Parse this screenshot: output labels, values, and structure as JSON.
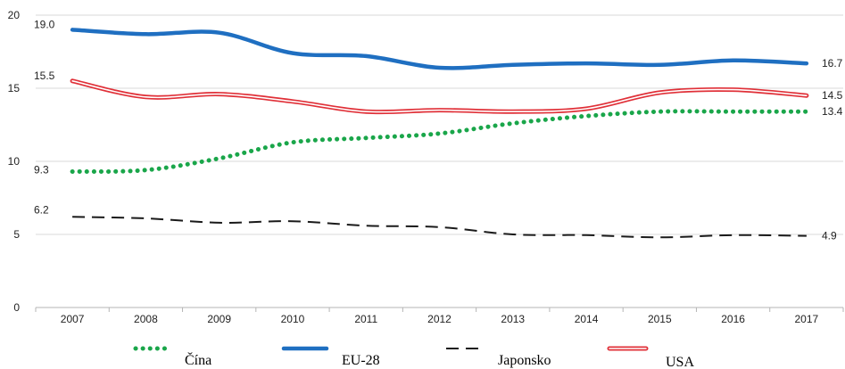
{
  "chart_data": {
    "type": "line",
    "title": "",
    "xlabel": "",
    "ylabel": "",
    "x": [
      "2007",
      "2008",
      "2009",
      "2010",
      "2011",
      "2012",
      "2013",
      "2014",
      "2015",
      "2016",
      "2017"
    ],
    "ylim": [
      0,
      20
    ],
    "yticks": [
      "0",
      "5",
      "10",
      "15",
      "20"
    ],
    "grid": "horizontal",
    "legend_position": "bottom",
    "series": [
      {
        "name": "Čína",
        "style": "dotted",
        "color": "#1aa64a",
        "values": [
          9.3,
          9.4,
          10.2,
          11.3,
          11.6,
          11.9,
          12.6,
          13.1,
          13.4,
          13.4,
          13.4
        ],
        "labels": {
          "first": "9.3",
          "last": "13.4"
        }
      },
      {
        "name": "EU-28",
        "style": "solid",
        "color": "#1f6fc1",
        "values": [
          19.0,
          18.7,
          18.8,
          17.4,
          17.2,
          16.4,
          16.6,
          16.7,
          16.6,
          16.9,
          16.7
        ],
        "labels": {
          "first": "19.0",
          "last": "16.7"
        }
      },
      {
        "name": "Japonsko",
        "style": "dashed",
        "color": "#1a1a1a",
        "values": [
          6.2,
          6.1,
          5.8,
          5.9,
          5.6,
          5.5,
          5.0,
          4.95,
          4.8,
          4.95,
          4.9
        ],
        "labels": {
          "first": "6.2",
          "last": "4.9"
        }
      },
      {
        "name": "USA",
        "style": "double",
        "color": "#e03038",
        "values": [
          15.5,
          14.4,
          14.6,
          14.1,
          13.4,
          13.5,
          13.4,
          13.6,
          14.7,
          14.9,
          14.5
        ],
        "labels": {
          "first": "15.5",
          "last": "14.5"
        }
      }
    ]
  }
}
